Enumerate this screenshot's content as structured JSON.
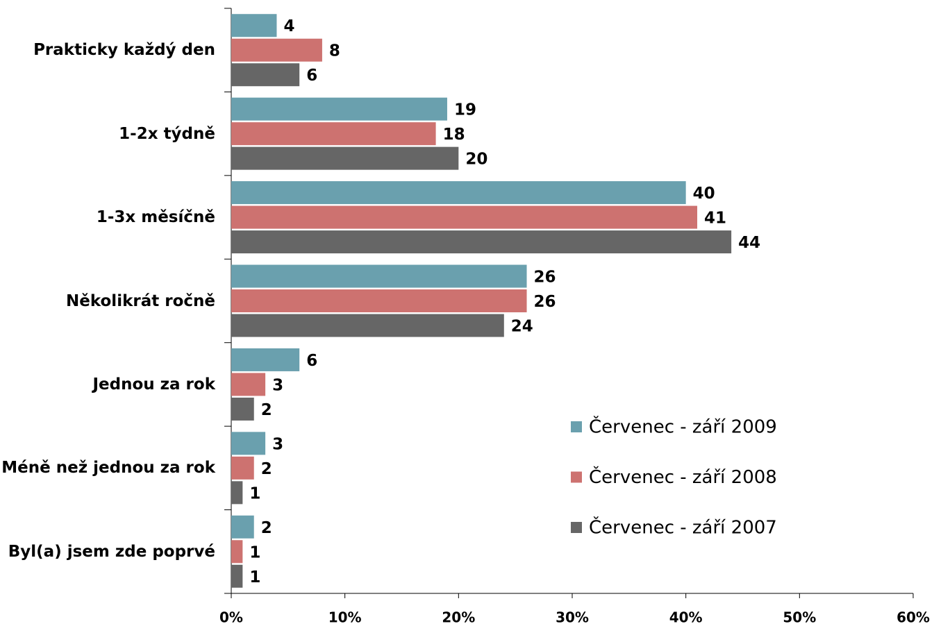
{
  "chart_data": {
    "type": "bar",
    "orientation": "horizontal",
    "categories": [
      "Prakticky každý den",
      "1-2x týdně",
      "1-3x měsíčně",
      "Několikrát ročně",
      "Jednou za rok",
      "Méně než jednou za rok",
      "Byl(a) jsem zde poprvé"
    ],
    "series": [
      {
        "name": "Červenec - září 2009",
        "color": "#6aa0ae",
        "values": [
          4,
          19,
          40,
          26,
          6,
          3,
          2
        ]
      },
      {
        "name": "Červenec - září 2008",
        "color": "#cd7270",
        "values": [
          8,
          18,
          41,
          26,
          3,
          2,
          1
        ]
      },
      {
        "name": "Červenec - září 2007",
        "color": "#666666",
        "values": [
          6,
          20,
          44,
          24,
          2,
          1,
          1
        ]
      }
    ],
    "xlim": [
      0,
      60
    ],
    "xticks": [
      {
        "value": 0,
        "label": "0%"
      },
      {
        "value": 10,
        "label": "10%"
      },
      {
        "value": 20,
        "label": "20%"
      },
      {
        "value": 30,
        "label": "30%"
      },
      {
        "value": 40,
        "label": "40%"
      },
      {
        "value": 50,
        "label": "50%"
      },
      {
        "value": 60,
        "label": "60%"
      }
    ],
    "legend": "right"
  }
}
